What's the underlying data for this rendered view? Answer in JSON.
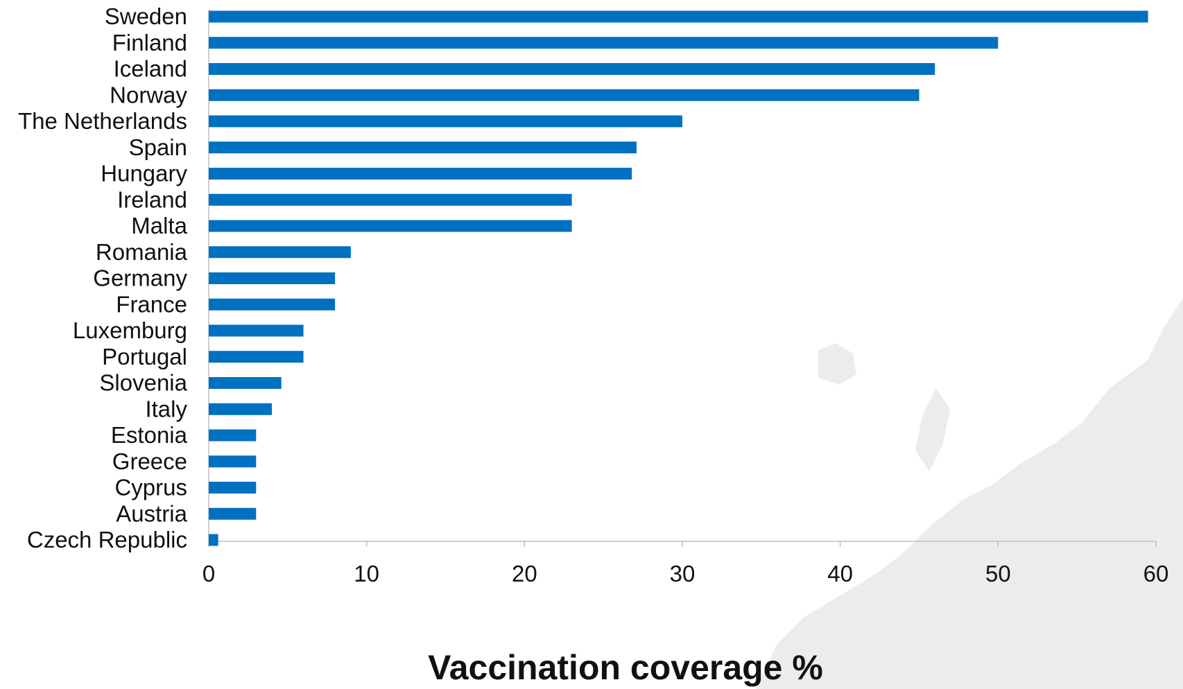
{
  "colors": {
    "bar": "#0070C0",
    "axis": "#BFBFBF",
    "background_map": "#ECECEC"
  },
  "chart_data": {
    "type": "bar",
    "orientation": "horizontal",
    "categories": [
      "Sweden",
      "Finland",
      "Iceland",
      "Norway",
      "The Netherlands",
      "Spain",
      "Hungary",
      "Ireland",
      "Malta",
      "Romania",
      "Germany",
      "France",
      "Luxemburg",
      "Portugal",
      "Slovenia",
      "Italy",
      "Estonia",
      "Greece",
      "Cyprus",
      "Austria",
      "Czech Republic"
    ],
    "values": [
      59.5,
      50,
      46,
      45,
      30,
      27.1,
      26.8,
      23,
      23,
      9,
      8,
      8,
      6,
      6,
      4.6,
      4,
      3,
      3,
      3,
      3,
      0.6
    ],
    "xlim": [
      0,
      60
    ],
    "xticks": [
      0,
      10,
      20,
      30,
      40,
      50,
      60
    ],
    "xlabel": "Vaccination coverage %",
    "ylabel": "",
    "title": "",
    "grid": false,
    "legend": "none",
    "background": "faded map of Europe"
  }
}
